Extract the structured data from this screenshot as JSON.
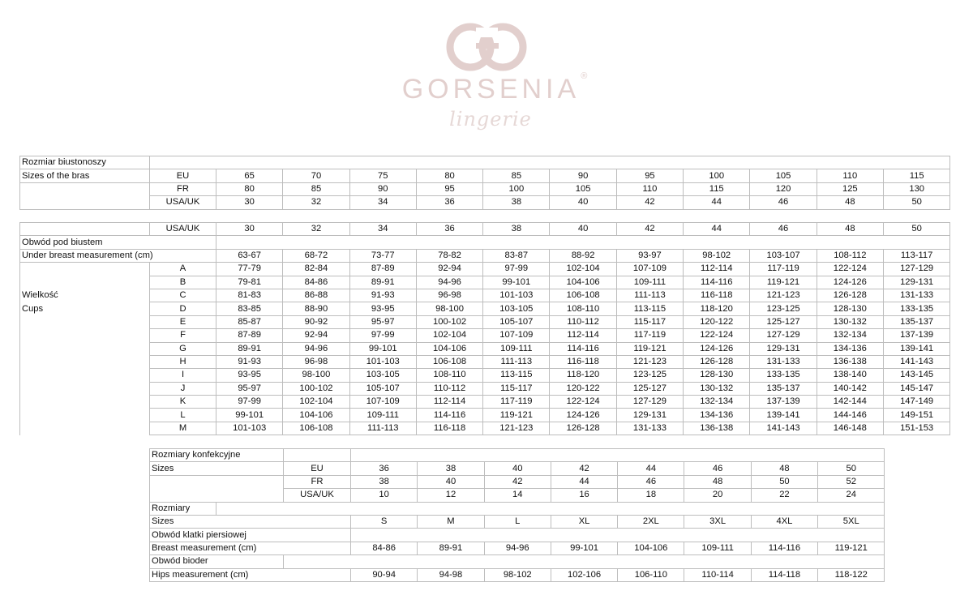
{
  "logo": {
    "brand": "GORSENIA",
    "registered": "®",
    "tagline": "lingerie",
    "color": "#e2cfcd"
  },
  "bra_sizes": {
    "title_pl": "Rozmiar biustonoszy",
    "title_en": "Sizes of the bras",
    "rows": [
      {
        "label": "EU",
        "values": [
          "65",
          "70",
          "75",
          "80",
          "85",
          "90",
          "95",
          "100",
          "105",
          "110",
          "115"
        ]
      },
      {
        "label": "FR",
        "values": [
          "80",
          "85",
          "90",
          "95",
          "100",
          "105",
          "110",
          "115",
          "120",
          "125",
          "130"
        ]
      },
      {
        "label": "USA/UK",
        "values": [
          "30",
          "32",
          "34",
          "36",
          "38",
          "40",
          "42",
          "44",
          "46",
          "48",
          "50"
        ]
      }
    ]
  },
  "cups_table": {
    "header_label": "USA/UK",
    "header_values": [
      "30",
      "32",
      "34",
      "36",
      "38",
      "40",
      "42",
      "44",
      "46",
      "48",
      "50"
    ],
    "under_breast_pl": "Obwód pod biustem",
    "under_breast_en": "Under breast measurement (cm)",
    "under_breast_values": [
      "63-67",
      "68-72",
      "73-77",
      "78-82",
      "83-87",
      "88-92",
      "93-97",
      "98-102",
      "103-107",
      "108-112",
      "113-117"
    ],
    "cups_label_pl": "Wielkość",
    "cups_label_en": "Cups",
    "cups": [
      {
        "cup": "A",
        "values": [
          "77-79",
          "82-84",
          "87-89",
          "92-94",
          "97-99",
          "102-104",
          "107-109",
          "112-114",
          "117-119",
          "122-124",
          "127-129"
        ]
      },
      {
        "cup": "B",
        "values": [
          "79-81",
          "84-86",
          "89-91",
          "94-96",
          "99-101",
          "104-106",
          "109-111",
          "114-116",
          "119-121",
          "124-126",
          "129-131"
        ]
      },
      {
        "cup": "C",
        "values": [
          "81-83",
          "86-88",
          "91-93",
          "96-98",
          "101-103",
          "106-108",
          "111-113",
          "116-118",
          "121-123",
          "126-128",
          "131-133"
        ]
      },
      {
        "cup": "D",
        "values": [
          "83-85",
          "88-90",
          "93-95",
          "98-100",
          "103-105",
          "108-110",
          "113-115",
          "118-120",
          "123-125",
          "128-130",
          "133-135"
        ]
      },
      {
        "cup": "E",
        "values": [
          "85-87",
          "90-92",
          "95-97",
          "100-102",
          "105-107",
          "110-112",
          "115-117",
          "120-122",
          "125-127",
          "130-132",
          "135-137"
        ]
      },
      {
        "cup": "F",
        "values": [
          "87-89",
          "92-94",
          "97-99",
          "102-104",
          "107-109",
          "112-114",
          "117-119",
          "122-124",
          "127-129",
          "132-134",
          "137-139"
        ]
      },
      {
        "cup": "G",
        "values": [
          "89-91",
          "94-96",
          "99-101",
          "104-106",
          "109-111",
          "114-116",
          "119-121",
          "124-126",
          "129-131",
          "134-136",
          "139-141"
        ]
      },
      {
        "cup": "H",
        "values": [
          "91-93",
          "96-98",
          "101-103",
          "106-108",
          "111-113",
          "116-118",
          "121-123",
          "126-128",
          "131-133",
          "136-138",
          "141-143"
        ]
      },
      {
        "cup": "I",
        "values": [
          "93-95",
          "98-100",
          "103-105",
          "108-110",
          "113-115",
          "118-120",
          "123-125",
          "128-130",
          "133-135",
          "138-140",
          "143-145"
        ]
      },
      {
        "cup": "J",
        "values": [
          "95-97",
          "100-102",
          "105-107",
          "110-112",
          "115-117",
          "120-122",
          "125-127",
          "130-132",
          "135-137",
          "140-142",
          "145-147"
        ]
      },
      {
        "cup": "K",
        "values": [
          "97-99",
          "102-104",
          "107-109",
          "112-114",
          "117-119",
          "122-124",
          "127-129",
          "132-134",
          "137-139",
          "142-144",
          "147-149"
        ]
      },
      {
        "cup": "L",
        "values": [
          "99-101",
          "104-106",
          "109-111",
          "114-116",
          "119-121",
          "124-126",
          "129-131",
          "134-136",
          "139-141",
          "144-146",
          "149-151"
        ]
      },
      {
        "cup": "M",
        "values": [
          "101-103",
          "106-108",
          "111-113",
          "116-118",
          "121-123",
          "126-128",
          "131-133",
          "136-138",
          "141-143",
          "146-148",
          "151-153"
        ]
      }
    ]
  },
  "clothing": {
    "title_pl": "Rozmiary konfekcyjne",
    "title_en": "Sizes",
    "rows": [
      {
        "label": "EU",
        "values": [
          "36",
          "38",
          "40",
          "42",
          "44",
          "46",
          "48",
          "50"
        ]
      },
      {
        "label": "FR",
        "values": [
          "38",
          "40",
          "42",
          "44",
          "46",
          "48",
          "50",
          "52"
        ]
      },
      {
        "label": "USA/UK",
        "values": [
          "10",
          "12",
          "14",
          "16",
          "18",
          "20",
          "22",
          "24"
        ]
      }
    ],
    "sizes_pl": "Rozmiary",
    "sizes_en": "Sizes",
    "letter_sizes": [
      "S",
      "M",
      "L",
      "XL",
      "2XL",
      "3XL",
      "4XL",
      "5XL"
    ],
    "breast_pl": "Obwód klatki piersiowej",
    "breast_en": "Breast measurement (cm)",
    "breast_values": [
      "84-86",
      "89-91",
      "94-96",
      "99-101",
      "104-106",
      "109-111",
      "114-116",
      "119-121"
    ],
    "hips_pl": "Obwód bioder",
    "hips_en": "Hips measurement (cm)",
    "hips_values": [
      "90-94",
      "94-98",
      "98-102",
      "102-106",
      "106-110",
      "110-114",
      "114-118",
      "118-122"
    ]
  }
}
